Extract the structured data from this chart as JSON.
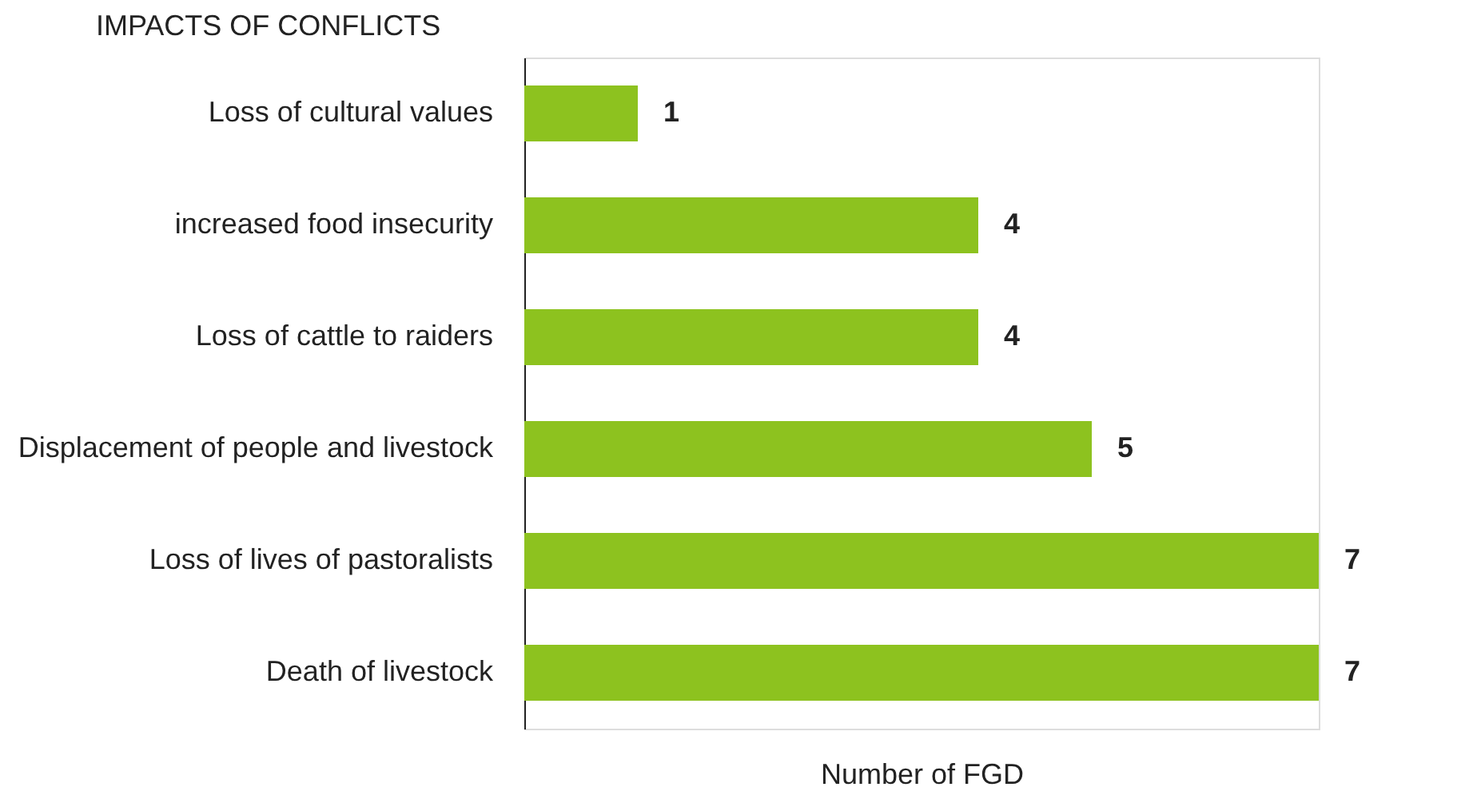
{
  "chart_data": {
    "type": "bar",
    "orientation": "horizontal",
    "title": "IMPACTS OF CONFLICTS",
    "xlabel": "Number of FGD",
    "categories": [
      "Loss of cultural values",
      "increased food insecurity",
      "Loss of cattle to raiders",
      "Displacement of people and livestock",
      "Loss of lives of pastoralists",
      "Death of livestock"
    ],
    "values": [
      1,
      4,
      4,
      5,
      7,
      7
    ],
    "color": "#8dc21f",
    "xlim": [
      0,
      7
    ],
    "data_labels": true,
    "tick_labels": "y"
  }
}
